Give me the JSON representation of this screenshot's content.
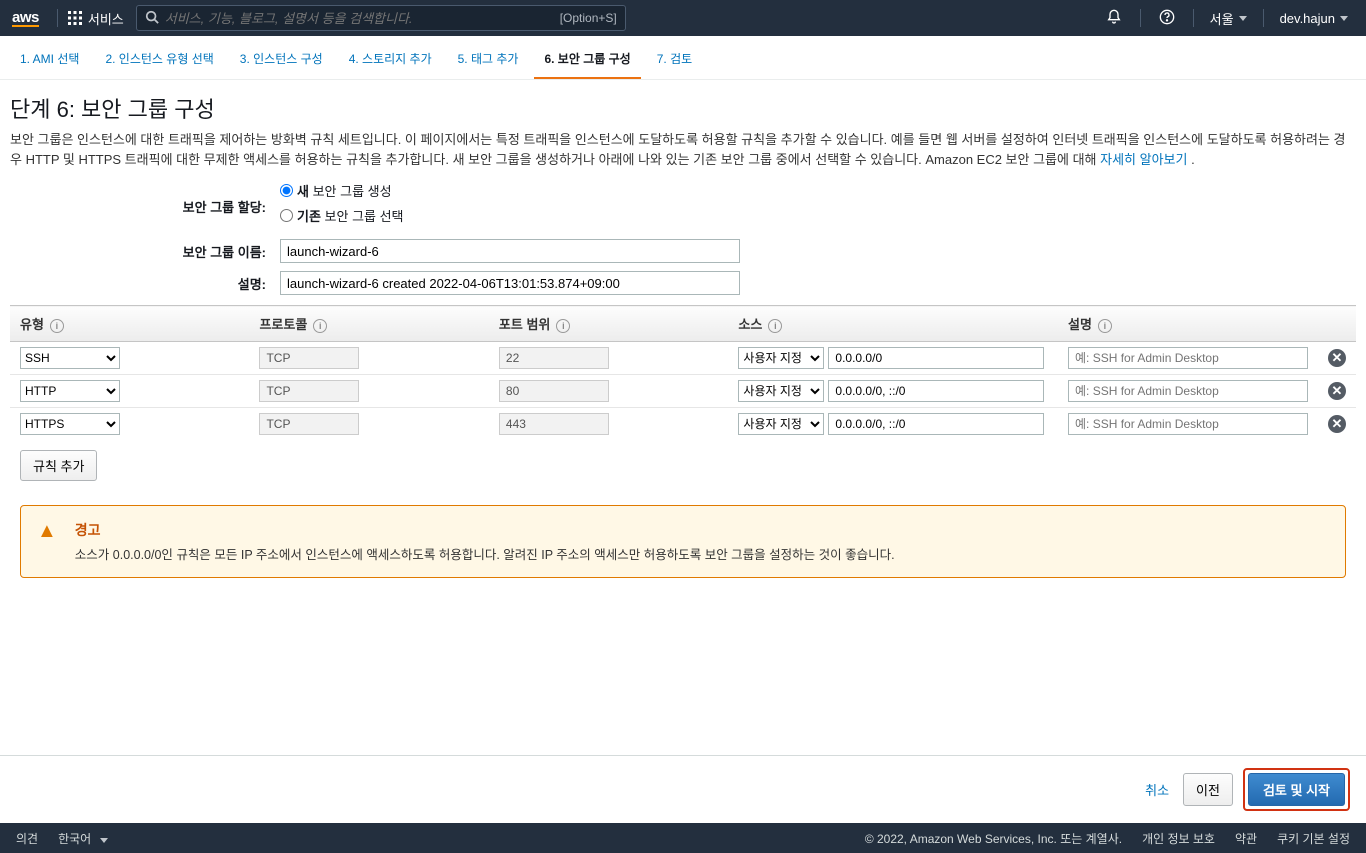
{
  "topnav": {
    "logo": "aws",
    "services_label": "서비스",
    "search_placeholder": "서비스, 기능, 블로그, 설명서 등을 검색합니다.",
    "search_shortcut": "[Option+S]",
    "region": "서울",
    "account": "dev.hajun"
  },
  "wizard": {
    "steps": [
      {
        "label": "1. AMI 선택",
        "active": false
      },
      {
        "label": "2. 인스턴스 유형 선택",
        "active": false
      },
      {
        "label": "3. 인스턴스 구성",
        "active": false
      },
      {
        "label": "4. 스토리지 추가",
        "active": false
      },
      {
        "label": "5. 태그 추가",
        "active": false
      },
      {
        "label": "6. 보안 그룹 구성",
        "active": true
      },
      {
        "label": "7. 검토",
        "active": false
      }
    ]
  },
  "page": {
    "title": "단계 6: 보안 그룹 구성",
    "description": "보안 그룹은 인스턴스에 대한 트래픽을 제어하는 방화벽 규칙 세트입니다. 이 페이지에서는 특정 트래픽을 인스턴스에 도달하도록 허용할 규칙을 추가할 수 있습니다. 예를 들면 웹 서버를 설정하여 인터넷 트래픽을 인스턴스에 도달하도록 허용하려는 경우 HTTP 및 HTTPS 트래픽에 대한 무제한 액세스를 허용하는 규칙을 추가합니다. 새 보안 그룹을 생성하거나 아래에 나와 있는 기존 보안 그룹 중에서 선택할 수 있습니다. Amazon EC2 보안 그룹에 대해 ",
    "learn_more": "자세히 알아보기",
    "form": {
      "assign_label": "보안 그룹 할당:",
      "radio_new_bold": "새",
      "radio_new_rest": " 보안 그룹 생성",
      "radio_existing_bold": "기존",
      "radio_existing_rest": " 보안 그룹 선택",
      "name_label": "보안 그룹 이름:",
      "name_value": "launch-wizard-6",
      "desc_label": "설명:",
      "desc_value": "launch-wizard-6 created 2022-04-06T13:01:53.874+09:00"
    }
  },
  "table": {
    "headers": {
      "type": "유형",
      "protocol": "프로토콜",
      "port": "포트 범위",
      "source": "소스",
      "description": "설명"
    },
    "rows": [
      {
        "type": "SSH",
        "protocol": "TCP",
        "port": "22",
        "source_mode": "사용자 지정",
        "source_val": "0.0.0.0/0",
        "desc_ph": "예: SSH for Admin Desktop"
      },
      {
        "type": "HTTP",
        "protocol": "TCP",
        "port": "80",
        "source_mode": "사용자 지정",
        "source_val": "0.0.0.0/0, ::/0",
        "desc_ph": "예: SSH for Admin Desktop"
      },
      {
        "type": "HTTPS",
        "protocol": "TCP",
        "port": "443",
        "source_mode": "사용자 지정",
        "source_val": "0.0.0.0/0, ::/0",
        "desc_ph": "예: SSH for Admin Desktop"
      }
    ],
    "add_rule": "규칙 추가"
  },
  "warning": {
    "title": "경고",
    "text": "소스가 0.0.0.0/0인 규칙은 모든 IP 주소에서 인스턴스에 액세스하도록 허용합니다. 알려진 IP 주소의 액세스만 허용하도록 보안 그룹을 설정하는 것이 좋습니다."
  },
  "actions": {
    "cancel": "취소",
    "prev": "이전",
    "review": "검토 및 시작"
  },
  "footer": {
    "feedback": "의견",
    "language": "한국어",
    "copyright": "© 2022, Amazon Web Services, Inc. 또는 계열사.",
    "privacy": "개인 정보 보호",
    "terms": "약관",
    "cookies": "쿠키 기본 설정"
  }
}
